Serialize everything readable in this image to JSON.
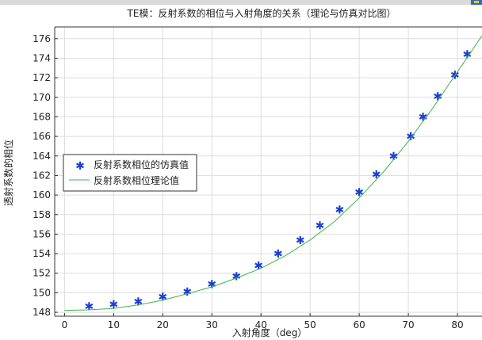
{
  "chart_data": {
    "type": "line",
    "title": "TE模：反射系数的相位与入射角度的关系（理论与仿真对比图）",
    "xlabel": "入射角度（deg）",
    "ylabel": "透射系数的相位",
    "xlim": [
      -2,
      85
    ],
    "ylim": [
      147.6,
      177.2
    ],
    "x_ticks": [
      0,
      10,
      20,
      30,
      40,
      50,
      60,
      70,
      80
    ],
    "y_ticks": [
      148,
      150,
      152,
      154,
      156,
      158,
      160,
      162,
      164,
      166,
      168,
      170,
      172,
      174,
      176
    ],
    "grid": true,
    "legend_position": "left-middle",
    "series": [
      {
        "name": "反射系数相位的仿真值",
        "kind": "scatter",
        "marker": "asterisk",
        "color": "#1a3fd6",
        "x": [
          5,
          10,
          15,
          20,
          25,
          30,
          35,
          39.5,
          43.5,
          48,
          52,
          56,
          60,
          63.5,
          67,
          70.5,
          73,
          76,
          79.5,
          82
        ],
        "y": [
          148.6,
          148.8,
          149.1,
          149.6,
          150.1,
          150.9,
          151.7,
          152.8,
          154.0,
          155.4,
          156.9,
          158.5,
          160.3,
          162.1,
          164.0,
          166.0,
          168.0,
          170.1,
          172.3,
          174.4
        ]
      },
      {
        "name": "反射系数相位理论值",
        "kind": "line",
        "color": "#3cb44b",
        "x": [
          0,
          5,
          10,
          15,
          20,
          25,
          30,
          35,
          40,
          45,
          50,
          55,
          60,
          65,
          70,
          75,
          80,
          85
        ],
        "y": [
          148.2,
          148.25,
          148.4,
          148.75,
          149.25,
          149.9,
          150.6,
          151.5,
          152.5,
          153.8,
          155.4,
          157.3,
          159.7,
          162.4,
          165.5,
          168.9,
          172.6,
          176.3
        ]
      }
    ]
  }
}
